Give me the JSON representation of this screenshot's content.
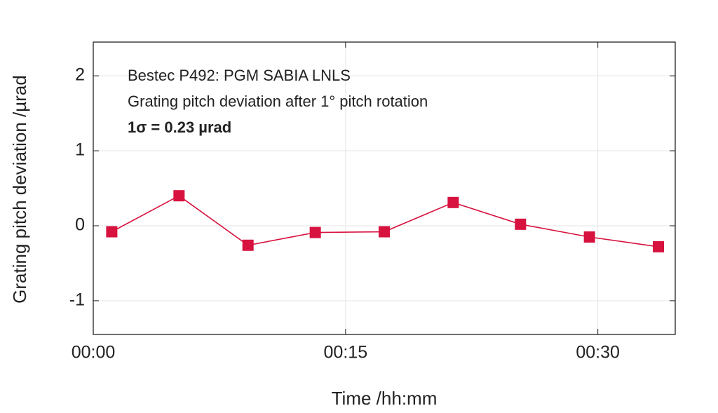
{
  "chart_data": {
    "type": "line",
    "ylabel": "Grating pitch deviation /µrad",
    "xlabel": "Time /hh:mm",
    "annotations": [
      "Bestec P492: PGM SABIA LNLS",
      "Grating pitch deviation after 1° pitch rotation",
      "1σ = 0.23 µrad"
    ],
    "x": [
      1.1,
      5.1,
      9.2,
      13.2,
      17.3,
      21.4,
      25.4,
      29.5,
      33.6
    ],
    "series": [
      {
        "color": "#d7123f",
        "values": [
          -0.08,
          0.4,
          -0.26,
          -0.09,
          -0.08,
          0.31,
          0.02,
          -0.15,
          -0.28
        ]
      }
    ],
    "xlim": [
      0,
      34.6
    ],
    "xticks": [
      {
        "value": 0,
        "label": "00:00"
      },
      {
        "value": 15,
        "label": "00:15"
      },
      {
        "value": 30,
        "label": "00:30"
      }
    ],
    "ylim": [
      -1.45,
      2.45
    ],
    "yticks": [
      -1,
      0,
      1,
      2
    ],
    "grid": true
  }
}
